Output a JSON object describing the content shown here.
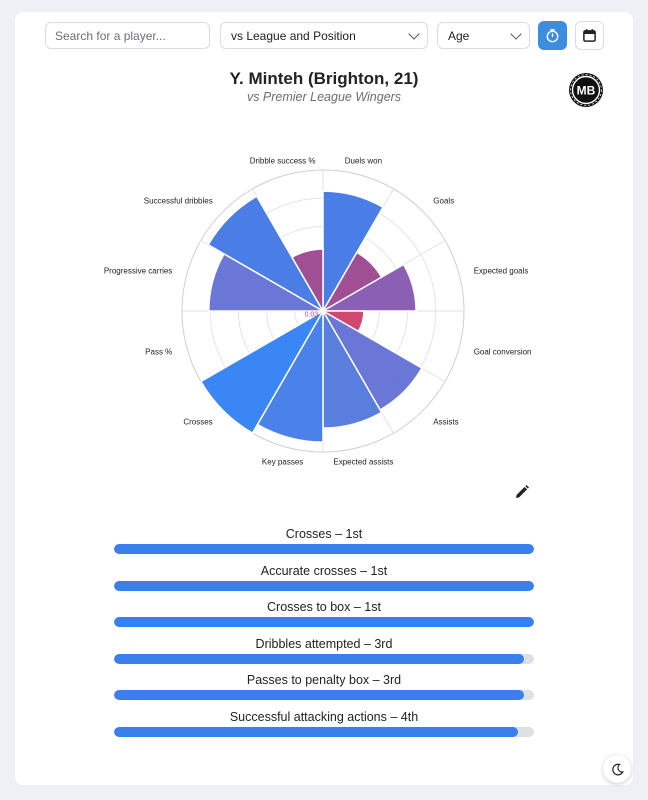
{
  "controls": {
    "search_placeholder": "Search for a player...",
    "comparison_select": "vs League and Position",
    "age_select": "Age",
    "clock_icon": "clock-icon",
    "calendar_icon": "calendar-icon"
  },
  "header": {
    "title": "Y. Minteh (Brighton, 21)",
    "subtitle": "vs Premier League Wingers",
    "logo_text": "MB"
  },
  "chart_data": {
    "type": "polar-area",
    "categories": [
      "Duels won",
      "Goals",
      "Expected goals",
      "Goal conversion",
      "Assists",
      "Expected assists",
      "Key passes",
      "Crosses",
      "Pass %",
      "Progressive carries",
      "Successful dribbles",
      "Dribble success %"
    ],
    "values": [
      0.85,
      0.48,
      0.66,
      0.29,
      0.81,
      0.83,
      0.93,
      1.0,
      0.03,
      0.81,
      0.94,
      0.44
    ],
    "value_labels": [
      "0.85",
      "0.48",
      "0.66",
      "0.29",
      "0.81",
      "0.83",
      "0.93",
      "1.00",
      "0.03",
      "0.81",
      "0.94",
      "0.44"
    ],
    "colors": [
      "#4a7ee6",
      "#a14f95",
      "#8a5fb4",
      "#cf4870",
      "#6a77d6",
      "#5a7edd",
      "#4a82ea",
      "#3b86f5",
      "#cf4870",
      "#6a77d6",
      "#4a7ee6",
      "#a14f95"
    ],
    "rlim": [
      0,
      1
    ],
    "grid": true
  },
  "edit_icon": "pencil-icon",
  "rankings": [
    {
      "label": "Crosses – 1st",
      "value": 1.0
    },
    {
      "label": "Accurate crosses – 1st",
      "value": 1.0
    },
    {
      "label": "Crosses to box – 1st",
      "value": 1.0
    },
    {
      "label": "Dribbles attempted – 3rd",
      "value": 0.975
    },
    {
      "label": "Passes to penalty box – 3rd",
      "value": 0.975
    },
    {
      "label": "Successful attacking actions – 4th",
      "value": 0.962
    }
  ],
  "theme_toggle_icon": "moon-icon"
}
